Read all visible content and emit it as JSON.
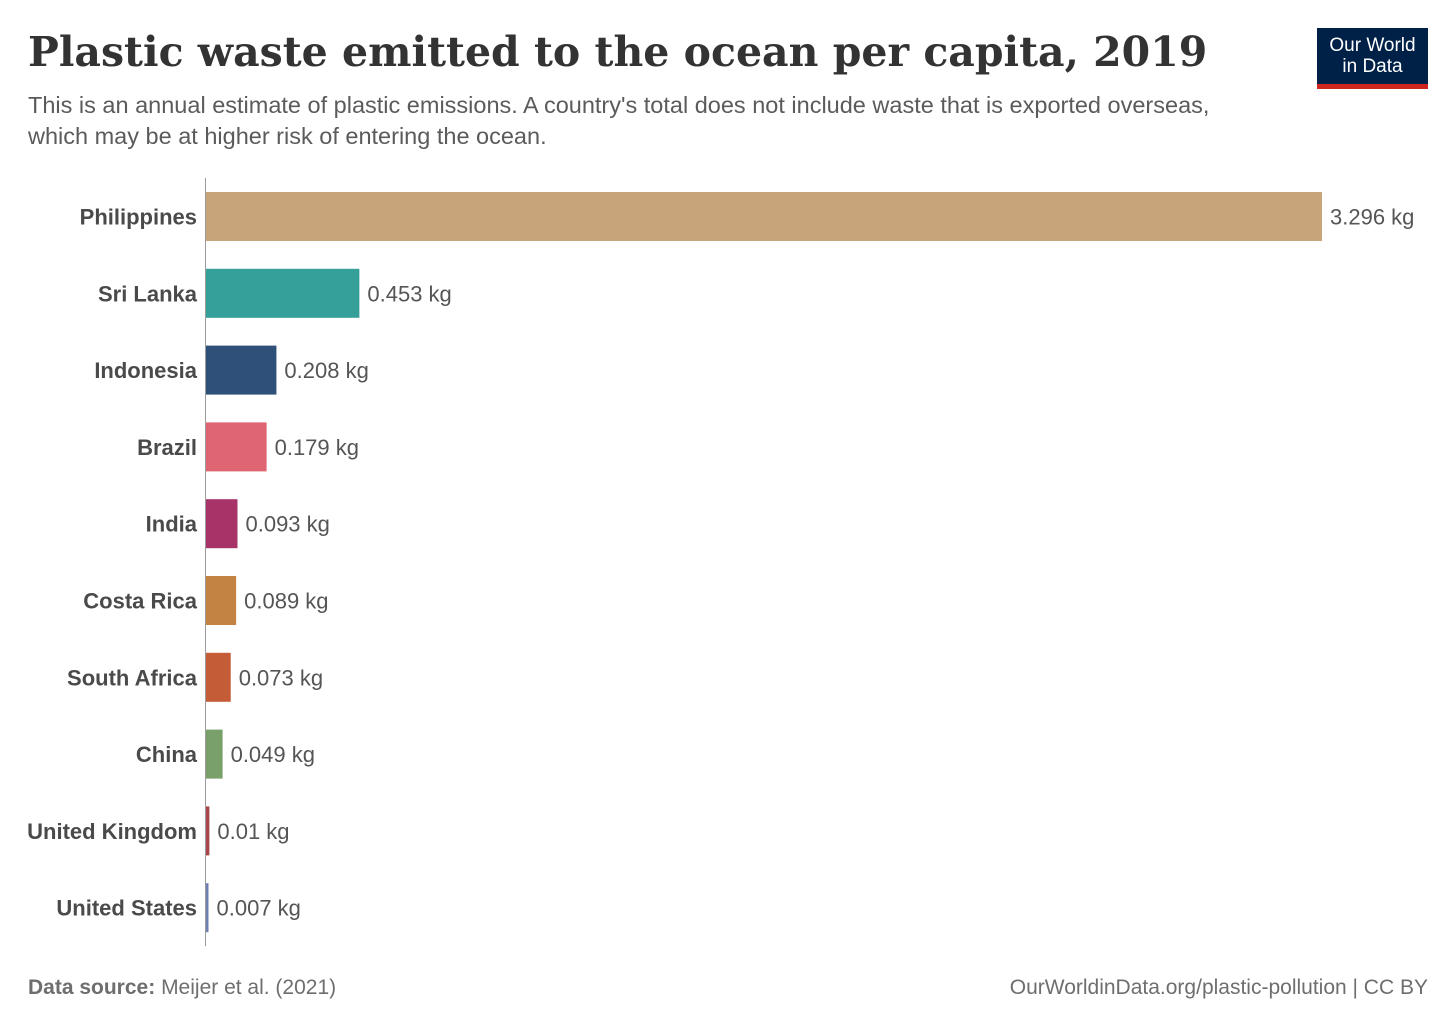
{
  "header": {
    "title": "Plastic waste emitted to the ocean per capita, 2019",
    "subtitle": "This is an annual estimate of plastic emissions. A country's total does not include waste that is exported overseas, which may be at higher risk of entering the ocean."
  },
  "logo": {
    "line1": "Our World",
    "line2": "in Data",
    "background": "#002147",
    "accent": "#ce261e"
  },
  "chart_data": {
    "type": "bar",
    "orientation": "horizontal",
    "categories": [
      "Philippines",
      "Sri Lanka",
      "Indonesia",
      "Brazil",
      "India",
      "Costa Rica",
      "South Africa",
      "China",
      "United Kingdom",
      "United States"
    ],
    "values": [
      3.296,
      0.453,
      0.208,
      0.179,
      0.093,
      0.089,
      0.073,
      0.049,
      0.01,
      0.007
    ],
    "labels": [
      "3.296 kg",
      "0.453 kg",
      "0.208 kg",
      "0.179 kg",
      "0.093 kg",
      "0.089 kg",
      "0.073 kg",
      "0.049 kg",
      "0.01 kg",
      "0.007 kg"
    ],
    "colors": [
      "#c8a47a",
      "#35a09a",
      "#2f5179",
      "#e06573",
      "#a73368",
      "#c28343",
      "#c55c38",
      "#799f6b",
      "#a8474a",
      "#6d82b0"
    ],
    "unit": "kg",
    "xlim": [
      0,
      3.296
    ],
    "grid": false,
    "legend": "none"
  },
  "footer": {
    "source_label": "Data source:",
    "source_value": "Meijer et al. (2021)",
    "url": "OurWorldinData.org/plastic-pollution | CC BY"
  }
}
